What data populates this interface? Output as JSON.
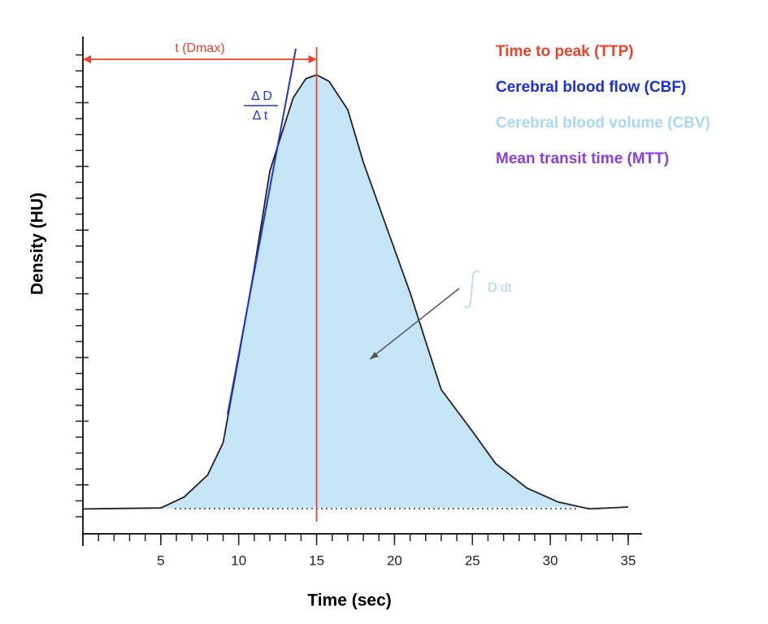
{
  "chart_data": {
    "type": "area",
    "xlabel": "Time (sec)",
    "ylabel": "Density (HU)",
    "x": [
      0,
      5,
      6.5,
      8,
      9,
      10,
      11,
      12,
      13.5,
      14.3,
      15,
      15.8,
      17,
      18,
      19.5,
      21,
      22,
      23,
      25,
      26.5,
      28.5,
      30.5,
      32.5,
      35
    ],
    "series": [
      {
        "color": "#c6e6f8",
        "values": [
          5,
          5.2,
          7.4,
          11.8,
          18.3,
          35.5,
          53.4,
          73,
          87.7,
          91.5,
          92.3,
          91,
          85.3,
          74.7,
          61.6,
          48.5,
          38.7,
          29,
          20.6,
          14.1,
          9.2,
          6.4,
          5,
          5.4
        ]
      }
    ],
    "xlim": [
      0,
      35
    ],
    "xticks": [
      5,
      10,
      15,
      20,
      25,
      30,
      35
    ],
    "ylim": [
      0,
      100
    ],
    "annotations": {
      "t_dmax": "t (Dmax)",
      "delta_d": "Δ D",
      "delta_t": "Δ t",
      "integral": "D dt"
    },
    "legend": [
      {
        "name": "Time to peak (TTP)",
        "color": "#e8432c"
      },
      {
        "name": "Cerebral blood flow (CBF)",
        "color": "#1b2fd8"
      },
      {
        "name": "Cerebral blood volume (CBV)",
        "color": "#a8d8f4"
      },
      {
        "name": "Mean transit time (MTT)",
        "color": "#8a3ee0"
      }
    ]
  }
}
